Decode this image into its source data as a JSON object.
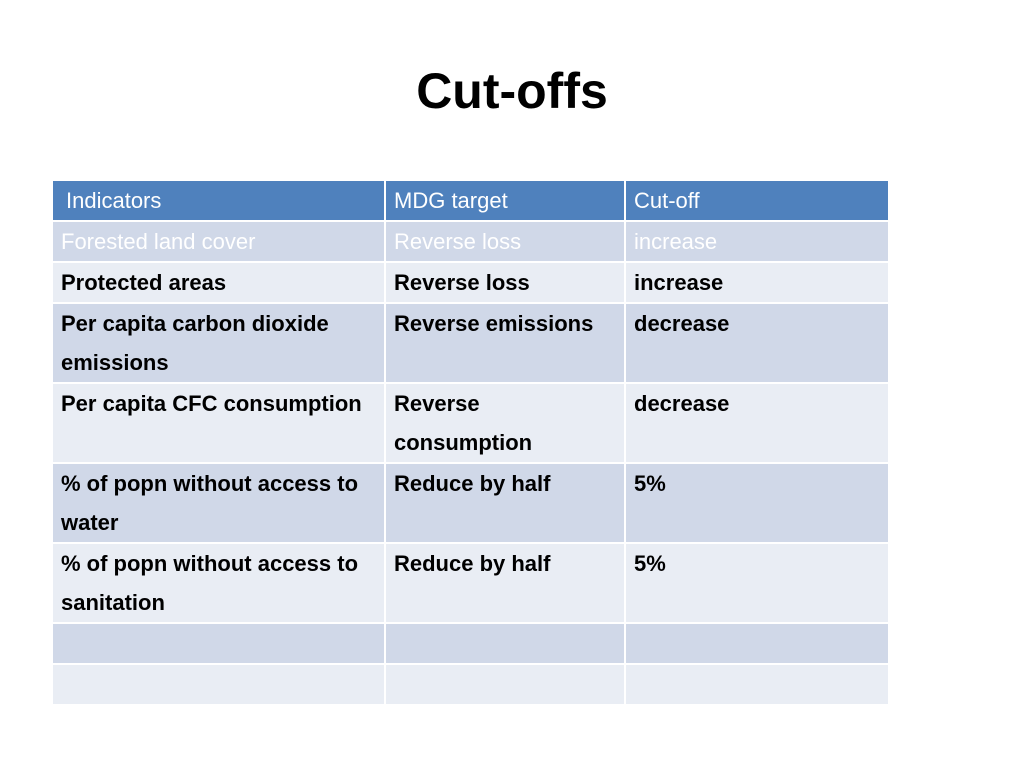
{
  "slide": {
    "title": "Cut-offs"
  },
  "table": {
    "headers": [
      "Indicators",
      "MDG target",
      "Cut-off"
    ],
    "rows": [
      [
        "Forested land cover",
        "Reverse loss",
        "increase"
      ],
      [
        "Protected areas",
        "Reverse loss",
        "increase"
      ],
      [
        "Per capita carbon dioxide emissions",
        "Reverse emissions",
        "decrease"
      ],
      [
        "Per capita CFC consumption",
        "Reverse consumption",
        "decrease"
      ],
      [
        "% of popn without access to water",
        "Reduce by half",
        "5%"
      ],
      [
        "% of popn without access to sanitation",
        "Reduce by half",
        "5%"
      ],
      [
        "",
        "",
        ""
      ],
      [
        "",
        "",
        ""
      ]
    ]
  },
  "colors": {
    "header_bg": "#4f81bd",
    "band_dark": "#d0d8e8",
    "band_light": "#e9edf4"
  }
}
